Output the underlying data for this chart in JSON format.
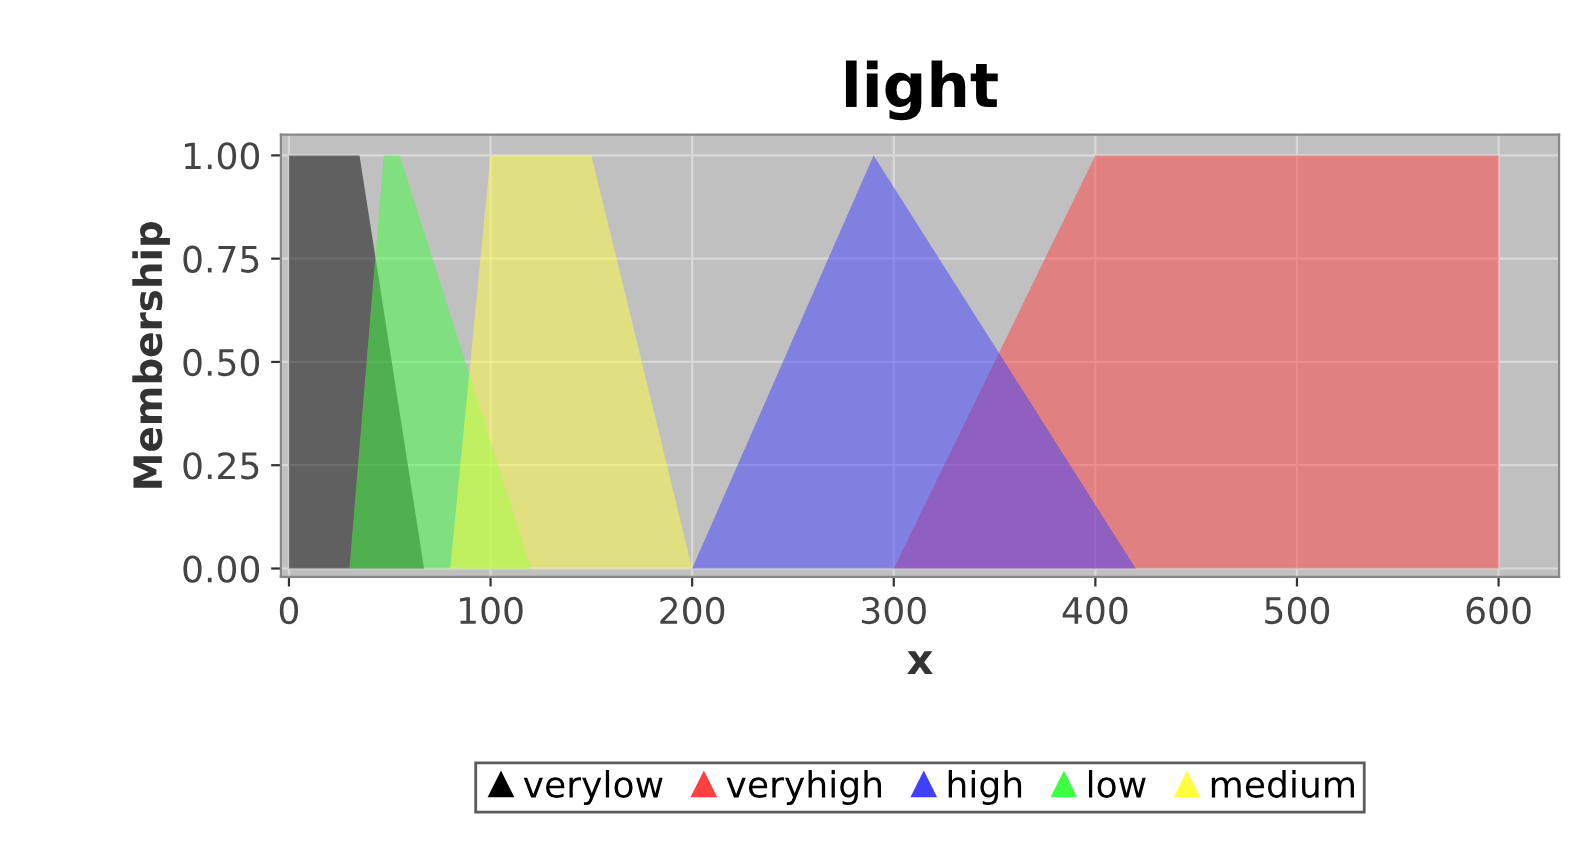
{
  "chart_data": {
    "type": "area",
    "title": "light",
    "xlabel": "x",
    "ylabel": "Membership",
    "series": [
      {
        "name": "verylow",
        "color": "#000000",
        "x": [
          0,
          0,
          35,
          67
        ],
        "values": [
          0,
          1,
          1,
          0
        ]
      },
      {
        "name": "veryhigh",
        "color": "#ff4040",
        "x": [
          300,
          400,
          600,
          600
        ],
        "values": [
          0,
          1,
          1,
          0
        ]
      },
      {
        "name": "high",
        "color": "#4040ff",
        "x": [
          200,
          290,
          420
        ],
        "values": [
          0,
          1,
          0
        ]
      },
      {
        "name": "low",
        "color": "#40ff40",
        "x": [
          30,
          47,
          55,
          120
        ],
        "values": [
          0,
          1,
          1,
          0
        ]
      },
      {
        "name": "medium",
        "color": "#ffff40",
        "x": [
          80,
          100,
          150,
          200
        ],
        "values": [
          0,
          1,
          1,
          0
        ]
      }
    ],
    "xlim": [
      -4,
      630
    ],
    "ylim": [
      -0.02,
      1.05
    ],
    "xticks": [
      0,
      100,
      200,
      300,
      400,
      500,
      600
    ],
    "yticks": [
      {
        "value": 0,
        "label": "0.00"
      },
      {
        "value": 0.25,
        "label": "0.25"
      },
      {
        "value": 0.5,
        "label": "0.50"
      },
      {
        "value": 0.75,
        "label": "0.75"
      },
      {
        "value": 1,
        "label": "1.00"
      }
    ],
    "grid": true,
    "legend": "bottom"
  }
}
